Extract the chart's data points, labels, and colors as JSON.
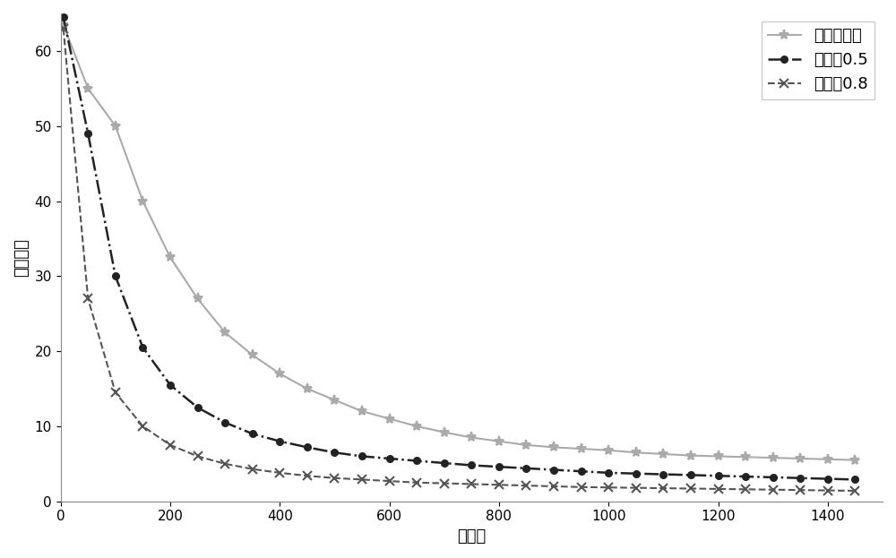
{
  "title": "",
  "xlabel": "符号数",
  "ylabel": "均方误差",
  "xlim": [
    0,
    1500
  ],
  "ylim": [
    0,
    65
  ],
  "yticks": [
    0,
    10,
    20,
    30,
    40,
    50,
    60
  ],
  "xticks": [
    0,
    200,
    400,
    600,
    800,
    1000,
    1200,
    1400
  ],
  "series": [
    {
      "label": "无动量因子",
      "color": "#aaaaaa",
      "linestyle": "-",
      "marker": "*",
      "markersize": 8,
      "linewidth": 1.5,
      "markevery": 1,
      "x": [
        5,
        50,
        100,
        150,
        200,
        250,
        300,
        350,
        400,
        450,
        500,
        550,
        600,
        650,
        700,
        750,
        800,
        850,
        900,
        950,
        1000,
        1050,
        1100,
        1150,
        1200,
        1250,
        1300,
        1350,
        1400,
        1450
      ],
      "y": [
        63.5,
        55.0,
        50.0,
        40.0,
        32.5,
        27.0,
        22.5,
        19.5,
        17.0,
        15.0,
        13.5,
        12.0,
        11.0,
        10.0,
        9.2,
        8.5,
        8.0,
        7.5,
        7.2,
        7.0,
        6.8,
        6.5,
        6.3,
        6.1,
        6.0,
        5.9,
        5.8,
        5.7,
        5.6,
        5.5
      ]
    },
    {
      "label": "学习率0.5",
      "color": "#222222",
      "linestyle": "-.",
      "marker": "o",
      "markersize": 5,
      "linewidth": 1.8,
      "markevery": 1,
      "x": [
        5,
        50,
        100,
        150,
        200,
        250,
        300,
        350,
        400,
        450,
        500,
        550,
        600,
        650,
        700,
        750,
        800,
        850,
        900,
        950,
        1000,
        1050,
        1100,
        1150,
        1200,
        1250,
        1300,
        1350,
        1400,
        1450
      ],
      "y": [
        64.5,
        49.0,
        30.0,
        20.5,
        15.5,
        12.5,
        10.5,
        9.0,
        8.0,
        7.2,
        6.5,
        6.0,
        5.7,
        5.4,
        5.1,
        4.8,
        4.6,
        4.4,
        4.2,
        4.0,
        3.8,
        3.7,
        3.6,
        3.5,
        3.4,
        3.3,
        3.2,
        3.1,
        3.0,
        2.9
      ]
    },
    {
      "label": "学习率0.8",
      "color": "#555555",
      "linestyle": "--",
      "marker": "x",
      "markersize": 7,
      "linewidth": 1.5,
      "markevery": 1,
      "x": [
        5,
        50,
        100,
        150,
        200,
        250,
        300,
        350,
        400,
        450,
        500,
        550,
        600,
        650,
        700,
        750,
        800,
        850,
        900,
        950,
        1000,
        1050,
        1100,
        1150,
        1200,
        1250,
        1300,
        1350,
        1400,
        1450
      ],
      "y": [
        63.0,
        27.0,
        14.5,
        10.0,
        7.5,
        6.0,
        5.0,
        4.3,
        3.8,
        3.4,
        3.1,
        2.9,
        2.7,
        2.5,
        2.4,
        2.3,
        2.2,
        2.1,
        2.0,
        1.9,
        1.85,
        1.8,
        1.75,
        1.7,
        1.65,
        1.6,
        1.55,
        1.5,
        1.45,
        1.4
      ]
    }
  ],
  "legend_loc": "upper right",
  "background_color": "#ffffff",
  "font_size": 13
}
